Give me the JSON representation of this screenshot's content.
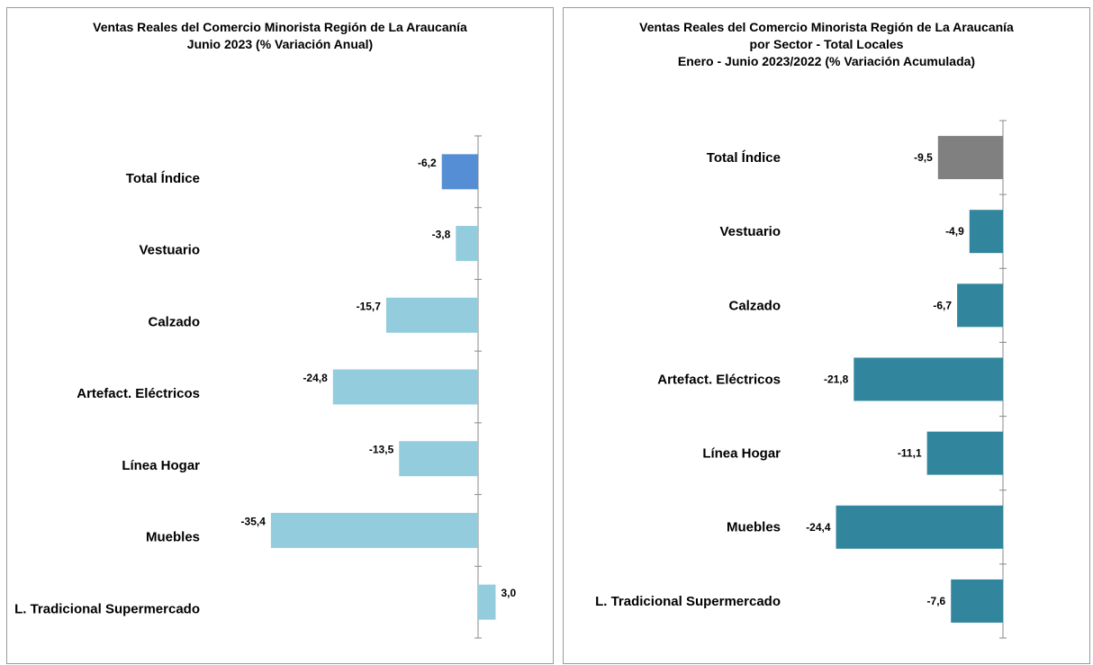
{
  "chart_data": [
    {
      "type": "bar",
      "orientation": "horizontal",
      "title": "Ventas Reales del Comercio Minorista  Región de La Araucanía\nJunio 2023 (% Variación Anual)",
      "categories": [
        "Total Índice",
        "Vestuario",
        "Calzado",
        "Artefact. Eléctricos",
        "Línea Hogar",
        "Muebles",
        "L. Tradicional Supermercado"
      ],
      "values": [
        -6.2,
        -3.8,
        -15.7,
        -24.8,
        -13.5,
        -35.4,
        3.0
      ],
      "value_labels": [
        "-6,2",
        "-3,8",
        "-15,7",
        "-24,8",
        "-13,5",
        "-35,4",
        "3,0"
      ],
      "colors": [
        "#558ed5",
        "#93cddd",
        "#93cddd",
        "#93cddd",
        "#93cddd",
        "#93cddd",
        "#93cddd"
      ],
      "grid": false
    },
    {
      "type": "bar",
      "orientation": "horizontal",
      "title": "Ventas Reales del Comercio Minorista Región de La Araucanía\npor Sector - Total Locales\nEnero - Junio 2023/2022 (% Variación Acumulada)",
      "categories": [
        "Total Índice",
        "Vestuario",
        "Calzado",
        "Artefact. Eléctricos",
        "Línea Hogar",
        "Muebles",
        "L. Tradicional Supermercado"
      ],
      "values": [
        -9.5,
        -4.9,
        -6.7,
        -21.8,
        -11.1,
        -24.4,
        -7.6
      ],
      "value_labels": [
        "-9,5",
        "-4,9",
        "-6,7",
        "-21,8",
        "-11,1",
        "-24,4",
        "-7,6"
      ],
      "colors": [
        "#808080",
        "#31859c",
        "#31859c",
        "#31859c",
        "#31859c",
        "#31859c",
        "#31859c"
      ],
      "grid": false
    }
  ]
}
